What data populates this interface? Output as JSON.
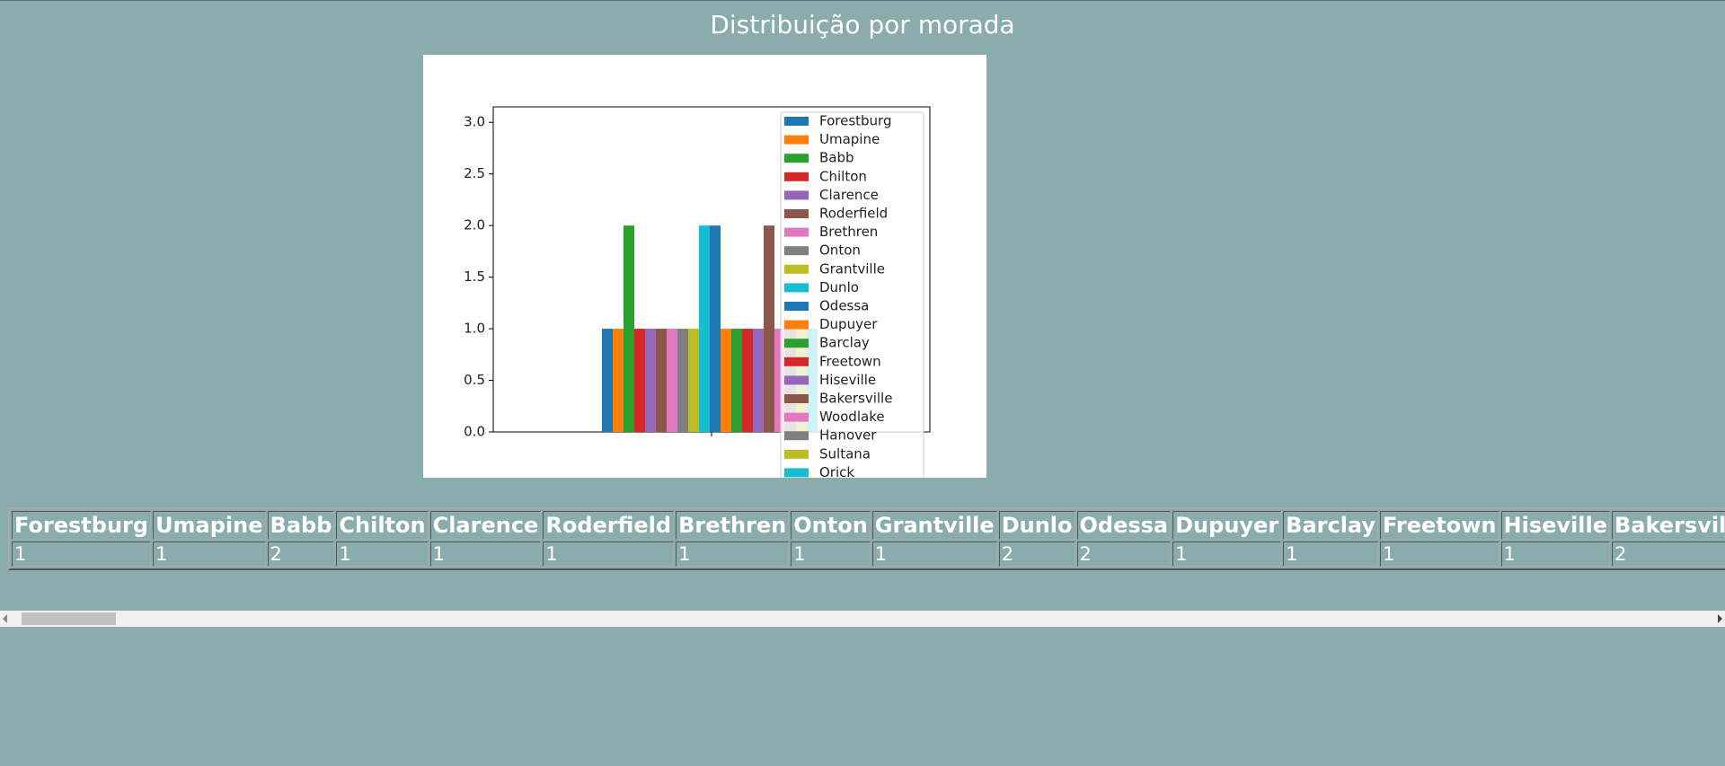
{
  "page_title": "Distribuição por morada",
  "chart_data": {
    "type": "bar",
    "series": [
      {
        "name": "Forestburg",
        "color": "#1f77b4",
        "values": [
          1
        ]
      },
      {
        "name": "Umapine",
        "color": "#ff7f0e",
        "values": [
          1
        ]
      },
      {
        "name": "Babb",
        "color": "#2ca02c",
        "values": [
          2
        ]
      },
      {
        "name": "Chilton",
        "color": "#d62728",
        "values": [
          1
        ]
      },
      {
        "name": "Clarence",
        "color": "#9467bd",
        "values": [
          1
        ]
      },
      {
        "name": "Roderfield",
        "color": "#8c564b",
        "values": [
          1
        ]
      },
      {
        "name": "Brethren",
        "color": "#e377c2",
        "values": [
          1
        ]
      },
      {
        "name": "Onton",
        "color": "#7f7f7f",
        "values": [
          1
        ]
      },
      {
        "name": "Grantville",
        "color": "#bcbd22",
        "values": [
          1
        ]
      },
      {
        "name": "Dunlo",
        "color": "#17becf",
        "values": [
          2
        ]
      },
      {
        "name": "Odessa",
        "color": "#1f77b4",
        "values": [
          2
        ]
      },
      {
        "name": "Dupuyer",
        "color": "#ff7f0e",
        "values": [
          1
        ]
      },
      {
        "name": "Barclay",
        "color": "#2ca02c",
        "values": [
          1
        ]
      },
      {
        "name": "Freetown",
        "color": "#d62728",
        "values": [
          1
        ]
      },
      {
        "name": "Hiseville",
        "color": "#9467bd",
        "values": [
          1
        ]
      },
      {
        "name": "Bakersville",
        "color": "#8c564b",
        "values": [
          2
        ]
      },
      {
        "name": "Woodlake",
        "color": "#e377c2",
        "values": [
          1
        ]
      },
      {
        "name": "Hanover",
        "color": "#7f7f7f",
        "values": [
          1
        ]
      },
      {
        "name": "Sultana",
        "color": "#bcbd22",
        "values": [
          1
        ]
      },
      {
        "name": "Orick",
        "color": "#17becf",
        "values": [
          1
        ]
      }
    ],
    "ylim": [
      0,
      3.15
    ],
    "yticks": [
      {
        "value": 0,
        "label": "0.0"
      },
      0.5,
      {
        "value": 1,
        "label": "1.0"
      },
      1.5,
      {
        "value": 2,
        "label": "2.0"
      },
      2.5,
      {
        "value": 3,
        "label": "3.0"
      }
    ],
    "legend": "upper right"
  }
}
